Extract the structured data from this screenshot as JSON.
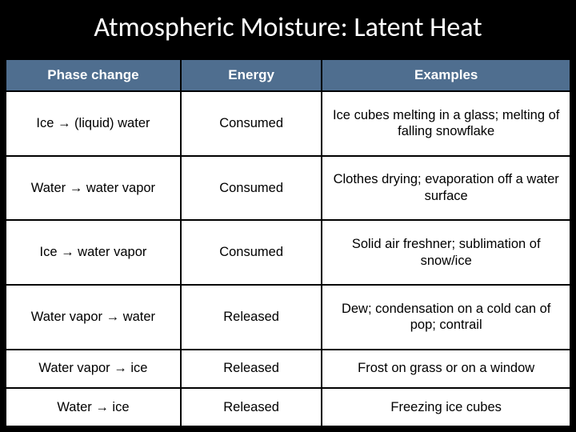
{
  "title": "Atmospheric Moisture: Latent Heat",
  "table": {
    "type": "table",
    "header_bg": "#4f6e8f",
    "header_fg": "#ffffff",
    "cell_bg": "#ffffff",
    "cell_fg": "#000000",
    "border_color": "#000000",
    "columns": [
      "Phase change",
      "Energy",
      "Examples"
    ],
    "column_widths_pct": [
      31,
      25,
      44
    ],
    "header_fontsize": 17,
    "cell_fontsize": 16.5,
    "rows": [
      [
        "Ice → (liquid) water",
        "Consumed",
        "Ice cubes melting in a glass; melting of falling snowflake"
      ],
      [
        "Water → water vapor",
        "Consumed",
        "Clothes drying; evaporation off a water surface"
      ],
      [
        "Ice → water vapor",
        "Consumed",
        "Solid air freshner; sublimation of snow/ice"
      ],
      [
        "Water vapor → water",
        "Released",
        "Dew; condensation on a cold can of pop; contrail"
      ],
      [
        "Water vapor → ice",
        "Released",
        "Frost on grass or on a window"
      ],
      [
        "Water → ice",
        "Released",
        "Freezing ice cubes"
      ]
    ]
  },
  "background_color": "#000000",
  "title_color": "#ffffff",
  "title_font": "Calibri",
  "title_fontsize": 34
}
